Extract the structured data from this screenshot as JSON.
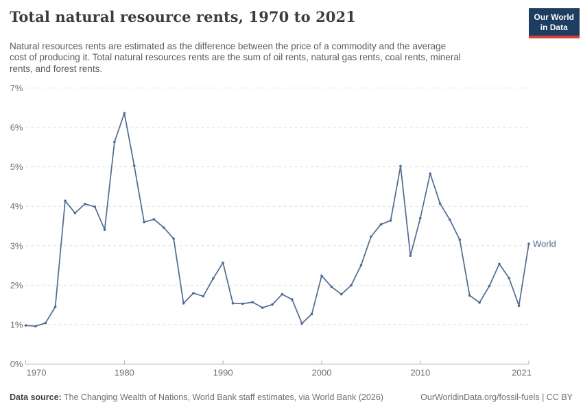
{
  "header": {
    "title": "Total natural resource rents, 1970 to 2021",
    "subtitle_lines": [
      "Natural resources rents are estimated as the difference between the price of a commodity and the average",
      "cost of producing it. Total natural resources rents are the sum of oil rents, natural gas rents, coal rents, mineral",
      "rents, and forest rents."
    ],
    "logo": {
      "line1": "Our World",
      "line2": "in Data"
    }
  },
  "chart_data": {
    "type": "line",
    "title": "Total natural resource rents, 1970 to 2021",
    "xlabel": "",
    "ylabel": "",
    "xlim": [
      1970,
      2021
    ],
    "ylim": [
      0,
      7
    ],
    "grid": "horizontal-dashed",
    "legend_position": "end-of-line-label",
    "x_ticks": [
      1970,
      1980,
      1990,
      2000,
      2010,
      2021
    ],
    "y_ticks": [
      {
        "value": 0,
        "label": "0%"
      },
      {
        "value": 1,
        "label": "1%"
      },
      {
        "value": 2,
        "label": "2%"
      },
      {
        "value": 3,
        "label": "3%"
      },
      {
        "value": 4,
        "label": "4%"
      },
      {
        "value": 5,
        "label": "5%"
      },
      {
        "value": 6,
        "label": "6%"
      },
      {
        "value": 7,
        "label": "7%"
      }
    ],
    "series": [
      {
        "name": "World",
        "color": "#4C6A9C",
        "x": [
          1970,
          1971,
          1972,
          1973,
          1974,
          1975,
          1976,
          1977,
          1978,
          1979,
          1980,
          1981,
          1982,
          1983,
          1984,
          1985,
          1986,
          1987,
          1988,
          1989,
          1990,
          1991,
          1992,
          1993,
          1994,
          1995,
          1996,
          1997,
          1998,
          1999,
          2000,
          2001,
          2002,
          2003,
          2004,
          2005,
          2006,
          2007,
          2008,
          2009,
          2010,
          2011,
          2012,
          2013,
          2014,
          2015,
          2016,
          2017,
          2018,
          2019,
          2020,
          2021
        ],
        "values": [
          0.98,
          0.96,
          1.04,
          1.45,
          4.14,
          3.83,
          4.06,
          3.99,
          3.41,
          5.63,
          6.36,
          5.03,
          3.6,
          3.67,
          3.46,
          3.18,
          1.54,
          1.8,
          1.72,
          2.17,
          2.57,
          1.54,
          1.53,
          1.57,
          1.43,
          1.51,
          1.77,
          1.64,
          1.03,
          1.27,
          2.24,
          1.96,
          1.77,
          2.0,
          2.51,
          3.23,
          3.54,
          3.64,
          5.02,
          2.75,
          3.7,
          4.83,
          4.07,
          3.66,
          3.15,
          1.74,
          1.56,
          1.98,
          2.54,
          2.18,
          1.48,
          3.05
        ]
      }
    ]
  },
  "footer": {
    "source_label": "Data source:",
    "source_text": " The Changing Wealth of Nations, World Bank staff estimates, via World Bank (2026)",
    "right_text": "OurWorldinData.org/fossil-fuels | CC BY"
  }
}
